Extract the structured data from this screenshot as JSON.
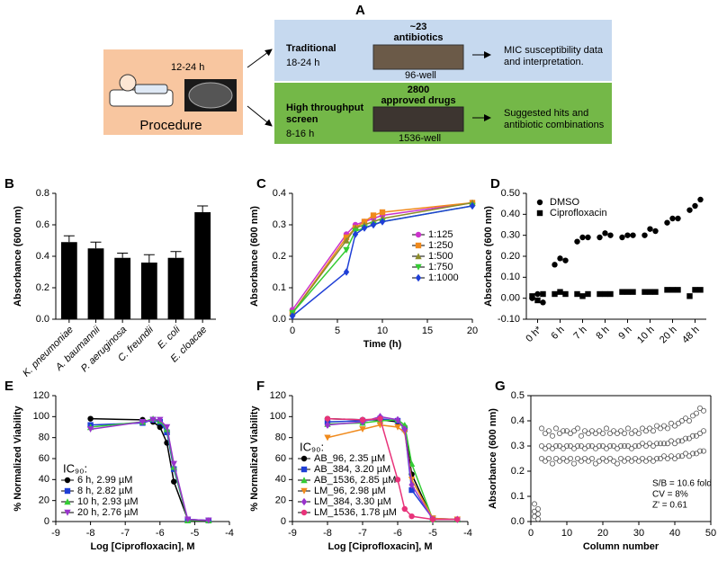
{
  "panel_a": {
    "label": "A",
    "procedure": {
      "time": "12-24 h",
      "caption": "Procedure"
    },
    "traditional": {
      "count": "~23",
      "unit": "antibiotics",
      "name": "Traditional",
      "time": "18-24 h",
      "plate": "96-well",
      "outcome": [
        "MIC susceptibility data",
        "and interpretation."
      ]
    },
    "screen": {
      "count": "2800",
      "unit": "approved drugs",
      "name": [
        "High throughput",
        "screen"
      ],
      "time": "8-16 h",
      "plate": "1536-well",
      "outcome": [
        "Suggested hits and",
        "antibiotic combinations"
      ]
    }
  },
  "chart_data": [
    {
      "type": "bar",
      "label": "B",
      "ylabel": "Absorbance (600 nm)",
      "categories": [
        "K. pneumoniae",
        "A. baumannii",
        "P. aeruginosa",
        "C. freundii",
        "E. coli",
        "E. cloacae"
      ],
      "values": [
        0.49,
        0.45,
        0.39,
        0.36,
        0.39,
        0.68
      ],
      "errors": [
        0.04,
        0.04,
        0.03,
        0.05,
        0.04,
        0.04
      ],
      "color": "#000000",
      "ylim": [
        0,
        0.8
      ],
      "yticks": [
        {
          "value": 0,
          "label": "0.0"
        },
        0.2,
        0.4,
        0.6,
        0.8
      ]
    },
    {
      "type": "line",
      "label": "C",
      "xlabel": "Time (h)",
      "ylabel": "Absorbance (600 nm)",
      "x": [
        0,
        6,
        7,
        8,
        9,
        10,
        20
      ],
      "series": [
        {
          "name": "1:125",
          "color": "#cc33cc",
          "marker": "circle",
          "values": [
            0.03,
            0.27,
            0.3,
            0.31,
            0.32,
            0.33,
            0.37
          ]
        },
        {
          "name": "1:250",
          "color": "#f08a1c",
          "marker": "square",
          "values": [
            0.02,
            0.26,
            0.29,
            0.31,
            0.33,
            0.34,
            0.37
          ]
        },
        {
          "name": "1:500",
          "color": "#8c8c2a",
          "marker": "triangle",
          "values": [
            0.02,
            0.25,
            0.29,
            0.3,
            0.31,
            0.32,
            0.37
          ]
        },
        {
          "name": "1:750",
          "color": "#33cc33",
          "marker": "triangle-down",
          "values": [
            0.02,
            0.22,
            0.28,
            0.29,
            0.3,
            0.31,
            0.36
          ]
        },
        {
          "name": "1:1000",
          "color": "#1f3fd6",
          "marker": "diamond",
          "values": [
            0.01,
            0.15,
            0.27,
            0.29,
            0.3,
            0.31,
            0.36
          ]
        }
      ],
      "xlim": [
        0,
        20
      ],
      "xticks": [
        0,
        5,
        10,
        15,
        20
      ],
      "ylim": [
        0,
        0.4
      ],
      "yticks": [
        {
          "value": 0,
          "label": "0.0"
        },
        0.1,
        0.2,
        0.3,
        0.4
      ],
      "legend": "center right"
    },
    {
      "type": "dot",
      "label": "D",
      "ylabel": "Absorbance (600 nm)",
      "categories": [
        "0 h*",
        "6 h",
        "7 h",
        "8 h",
        "9 h",
        "10 h",
        "20 h",
        "48 h"
      ],
      "series": [
        {
          "name": "DMSO",
          "color": "#000000",
          "marker": "circle",
          "values": [
            [
              0.0,
              0.02,
              -0.02
            ],
            [
              0.16,
              0.19,
              0.18
            ],
            [
              0.27,
              0.29,
              0.29
            ],
            [
              0.29,
              0.31,
              0.3
            ],
            [
              0.29,
              0.3,
              0.3
            ],
            [
              0.3,
              0.33,
              0.32
            ],
            [
              0.36,
              0.38,
              0.38
            ],
            [
              0.42,
              0.44,
              0.47
            ]
          ]
        },
        {
          "name": "Ciprofloxacin",
          "color": "#000000",
          "marker": "square",
          "values": [
            [
              0.01,
              -0.01,
              0.02
            ],
            [
              0.02,
              0.03,
              0.02
            ],
            [
              0.02,
              0.01,
              0.02
            ],
            [
              0.02,
              0.02,
              0.02
            ],
            [
              0.03,
              0.03,
              0.03
            ],
            [
              0.03,
              0.03,
              0.03
            ],
            [
              0.04,
              0.04,
              0.04
            ],
            [
              0.01,
              0.04,
              0.04
            ]
          ]
        }
      ],
      "ylim": [
        -0.1,
        0.5
      ],
      "yticks": [
        {
          "value": -0.1,
          "label": "-0.10"
        },
        {
          "value": 0,
          "label": "0.00"
        },
        {
          "value": 0.1,
          "label": "0.10"
        },
        {
          "value": 0.2,
          "label": "0.20"
        },
        {
          "value": 0.3,
          "label": "0.30"
        },
        {
          "value": 0.4,
          "label": "0.40"
        },
        {
          "value": 0.5,
          "label": "0.50"
        }
      ],
      "legend": "upper left"
    },
    {
      "type": "line",
      "label": "E",
      "xlabel": "Log [Ciprofloxacin], M",
      "ylabel": "% Normalized Viability",
      "x": [
        -8,
        -6.5,
        -6.2,
        -6,
        -5.8,
        -5.6,
        -5.2,
        -4.6
      ],
      "series": [
        {
          "name": "6 h, 2.99 µM",
          "color": "#000000",
          "marker": "circle",
          "values": [
            98,
            97,
            95,
            90,
            75,
            38,
            2,
            1
          ]
        },
        {
          "name": "8 h, 2.82 µM",
          "color": "#1f3fd6",
          "marker": "square",
          "values": [
            92,
            94,
            97,
            95,
            85,
            50,
            2,
            1
          ]
        },
        {
          "name": "10 h, 2.93 µM",
          "color": "#33cc33",
          "marker": "triangle",
          "values": [
            90,
            95,
            98,
            96,
            88,
            52,
            1,
            1
          ]
        },
        {
          "name": "20 h, 2.76 µM",
          "color": "#9933cc",
          "marker": "triangle-down",
          "values": [
            88,
            95,
            97,
            97,
            90,
            55,
            2,
            1
          ]
        }
      ],
      "xlim": [
        -9,
        -4
      ],
      "xticks": [
        -9,
        -8,
        -7,
        -6,
        -5,
        -4
      ],
      "ylim": [
        0,
        120
      ],
      "yticks": [
        0,
        20,
        40,
        60,
        80,
        100,
        120
      ],
      "legend": "lower left",
      "legend_title": "IC₉₀:"
    },
    {
      "type": "line",
      "label": "F",
      "xlabel": "Log [Ciprofloxacin], M",
      "ylabel": "% Normalized Viability",
      "x": [
        -8,
        -7,
        -6.5,
        -6,
        -5.8,
        -5.6,
        -5,
        -4.3
      ],
      "series": [
        {
          "name": "AB_96, 2.35 µM",
          "color": "#000000",
          "marker": "circle",
          "values": [
            98,
            97,
            97,
            95,
            90,
            45,
            2,
            2
          ]
        },
        {
          "name": "AB_384, 3.20 µM",
          "color": "#1f3fd6",
          "marker": "square",
          "values": [
            95,
            96,
            98,
            96,
            88,
            30,
            3,
            2
          ]
        },
        {
          "name": "AB_1536, 2.85 µM",
          "color": "#33cc33",
          "marker": "triangle",
          "values": [
            93,
            94,
            96,
            97,
            92,
            55,
            2,
            2
          ]
        },
        {
          "name": "LM_96, 2.98 µM",
          "color": "#f08a1c",
          "marker": "triangle-down",
          "values": [
            80,
            88,
            92,
            90,
            85,
            40,
            3,
            2
          ]
        },
        {
          "name": "LM_384, 3.30 µM",
          "color": "#9933cc",
          "marker": "diamond",
          "values": [
            92,
            95,
            100,
            97,
            88,
            35,
            2,
            2
          ]
        },
        {
          "name": "LM_1536, 1.78 µM",
          "color": "#e8337a",
          "marker": "circle",
          "values": [
            98,
            97,
            98,
            40,
            12,
            5,
            2,
            2
          ]
        }
      ],
      "xlim": [
        -9,
        -4
      ],
      "xticks": [
        -9,
        -8,
        -7,
        -6,
        -5,
        -4
      ],
      "ylim": [
        0,
        120
      ],
      "yticks": [
        0,
        20,
        40,
        60,
        80,
        100,
        120
      ],
      "legend": "lower left",
      "legend_title": "IC₉₀:"
    },
    {
      "type": "scatter",
      "label": "G",
      "xlabel": "Column number",
      "ylabel": "Absorbance (600 nm)",
      "x": [
        1,
        2,
        3,
        4,
        5,
        6,
        7,
        8,
        9,
        10,
        11,
        12,
        13,
        14,
        15,
        16,
        17,
        18,
        19,
        20,
        21,
        22,
        23,
        24,
        25,
        26,
        27,
        28,
        29,
        30,
        31,
        32,
        33,
        34,
        35,
        36,
        37,
        38,
        39,
        40,
        41,
        42,
        43,
        44,
        45,
        46,
        47,
        48
      ],
      "values": [
        [
          0.02,
          0.04,
          0.07
        ],
        [
          0.01,
          0.03,
          0.05
        ],
        [
          0.25,
          0.3,
          0.37
        ],
        [
          0.24,
          0.29,
          0.35
        ],
        [
          0.25,
          0.3,
          0.36
        ],
        [
          0.23,
          0.29,
          0.34
        ],
        [
          0.25,
          0.3,
          0.37
        ],
        [
          0.24,
          0.3,
          0.35
        ],
        [
          0.25,
          0.29,
          0.36
        ],
        [
          0.24,
          0.3,
          0.36
        ],
        [
          0.25,
          0.3,
          0.35
        ],
        [
          0.23,
          0.29,
          0.36
        ],
        [
          0.25,
          0.3,
          0.37
        ],
        [
          0.24,
          0.3,
          0.34
        ],
        [
          0.25,
          0.29,
          0.36
        ],
        [
          0.24,
          0.3,
          0.35
        ],
        [
          0.25,
          0.3,
          0.36
        ],
        [
          0.23,
          0.29,
          0.35
        ],
        [
          0.24,
          0.3,
          0.36
        ],
        [
          0.25,
          0.3,
          0.35
        ],
        [
          0.24,
          0.29,
          0.37
        ],
        [
          0.25,
          0.3,
          0.35
        ],
        [
          0.24,
          0.3,
          0.36
        ],
        [
          0.23,
          0.29,
          0.35
        ],
        [
          0.25,
          0.3,
          0.36
        ],
        [
          0.24,
          0.3,
          0.35
        ],
        [
          0.25,
          0.3,
          0.37
        ],
        [
          0.24,
          0.29,
          0.35
        ],
        [
          0.25,
          0.3,
          0.36
        ],
        [
          0.24,
          0.3,
          0.35
        ],
        [
          0.25,
          0.31,
          0.37
        ],
        [
          0.24,
          0.3,
          0.36
        ],
        [
          0.25,
          0.31,
          0.37
        ],
        [
          0.24,
          0.3,
          0.36
        ],
        [
          0.25,
          0.31,
          0.38
        ],
        [
          0.25,
          0.31,
          0.37
        ],
        [
          0.26,
          0.31,
          0.38
        ],
        [
          0.25,
          0.31,
          0.37
        ],
        [
          0.26,
          0.32,
          0.39
        ],
        [
          0.25,
          0.31,
          0.38
        ],
        [
          0.26,
          0.32,
          0.39
        ],
        [
          0.26,
          0.32,
          0.4
        ],
        [
          0.27,
          0.33,
          0.41
        ],
        [
          0.26,
          0.33,
          0.4
        ],
        [
          0.27,
          0.34,
          0.42
        ],
        [
          0.27,
          0.34,
          0.43
        ],
        [
          0.28,
          0.35,
          0.45
        ],
        [
          0.28,
          0.36,
          0.44
        ]
      ],
      "color": "#555555",
      "marker": "open-circle",
      "xlim": [
        0,
        50
      ],
      "xticks": [
        0,
        10,
        20,
        30,
        40,
        50
      ],
      "ylim": [
        0,
        0.5
      ],
      "yticks": [
        {
          "value": 0,
          "label": "0.0"
        },
        0.1,
        0.2,
        0.3,
        0.4,
        0.5
      ],
      "annotations": [
        "S/B = 10.6 fold",
        "CV = 8%",
        "Z' = 0.61"
      ]
    }
  ]
}
